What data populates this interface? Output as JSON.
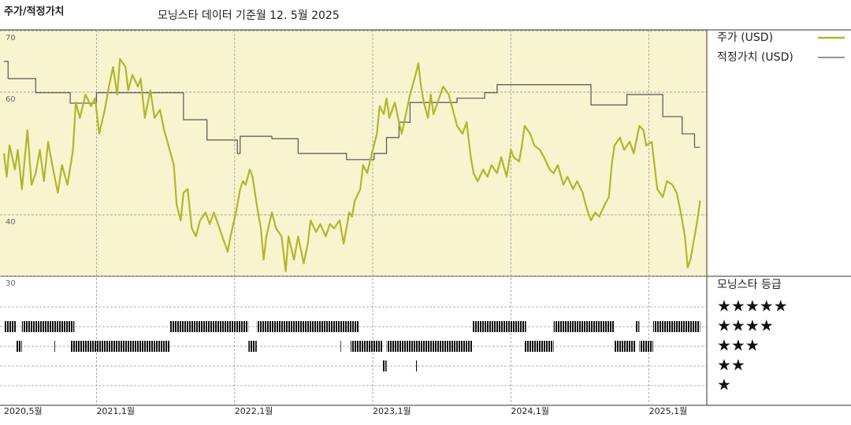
{
  "chart_data": {
    "type": "line",
    "title": "주가/적정가치",
    "subtitle": "모닝스타 데이터 기준월 12. 5월 2025",
    "xlim": [
      2020.33,
      2025.41
    ],
    "xticks": [
      {
        "value": 2020.33,
        "label": "2020,5월"
      },
      {
        "value": 2021.0,
        "label": "2021,1월"
      },
      {
        "value": 2022.0,
        "label": "2022,1월"
      },
      {
        "value": 2023.0,
        "label": "2023,1월"
      },
      {
        "value": 2024.0,
        "label": "2024,1월"
      },
      {
        "value": 2025.0,
        "label": "2025,1월"
      }
    ],
    "ylim": [
      30,
      70
    ],
    "yticks": [
      30,
      40,
      60,
      70
    ],
    "grid": true,
    "series": [
      {
        "name": "주가 (USD)",
        "color": "#b3b52a",
        "step": false,
        "x": [
          2020.33,
          2020.35,
          2020.37,
          2020.41,
          2020.43,
          2020.46,
          2020.5,
          2020.53,
          2020.56,
          2020.59,
          2020.62,
          2020.65,
          2020.68,
          2020.72,
          2020.75,
          2020.79,
          2020.83,
          2020.85,
          2020.88,
          2020.92,
          2020.96,
          2020.99,
          2021.02,
          2021.06,
          2021.09,
          2021.12,
          2021.15,
          2021.17,
          2021.21,
          2021.23,
          2021.26,
          2021.3,
          2021.32,
          2021.35,
          2021.39,
          2021.42,
          2021.46,
          2021.49,
          2021.53,
          2021.56,
          2021.58,
          2021.61,
          2021.63,
          2021.66,
          2021.69,
          2021.72,
          2021.75,
          2021.79,
          2021.82,
          2021.85,
          2021.88,
          2021.91,
          2021.95,
          2021.97,
          2022.01,
          2022.04,
          2022.06,
          2022.08,
          2022.11,
          2022.13,
          2022.16,
          2022.19,
          2022.21,
          2022.23,
          2022.27,
          2022.3,
          2022.34,
          2022.37,
          2022.39,
          2022.43,
          2022.46,
          2022.5,
          2022.53,
          2022.55,
          2022.59,
          2022.62,
          2022.66,
          2022.69,
          2022.72,
          2022.76,
          2022.79,
          2022.83,
          2022.85,
          2022.87,
          2022.91,
          2022.93,
          2022.96,
          2023.0,
          2023.03,
          2023.05,
          2023.08,
          2023.1,
          2023.12,
          2023.16,
          2023.19,
          2023.21,
          2023.24,
          2023.27,
          2023.31,
          2023.33,
          2023.35,
          2023.37,
          2023.4,
          2023.42,
          2023.44,
          2023.48,
          2023.51,
          2023.55,
          2023.58,
          2023.61,
          2023.65,
          2023.68,
          2023.71,
          2023.73,
          2023.76,
          2023.8,
          2023.83,
          2023.86,
          2023.9,
          2023.93,
          2023.97,
          2024.0,
          2024.02,
          2024.06,
          2024.08,
          2024.1,
          2024.14,
          2024.17,
          2024.21,
          2024.24,
          2024.28,
          2024.31,
          2024.34,
          2024.38,
          2024.41,
          2024.45,
          2024.48,
          2024.52,
          2024.55,
          2024.58,
          2024.61,
          2024.64,
          2024.68,
          2024.71,
          2024.73,
          2024.75,
          2024.79,
          2024.82,
          2024.86,
          2024.89,
          2024.93,
          2024.96,
          2024.98,
          2025.02,
          2025.04,
          2025.06,
          2025.1,
          2025.13,
          2025.17,
          2025.2,
          2025.23,
          2025.26,
          2025.28,
          2025.3,
          2025.33,
          2025.35,
          2025.37
        ],
        "values": [
          50.0,
          46.2,
          51.3,
          47.4,
          50.6,
          44.2,
          53.8,
          44.9,
          46.8,
          50.6,
          45.5,
          51.9,
          48.1,
          43.6,
          48.1,
          44.9,
          50.6,
          58.3,
          55.8,
          59.6,
          57.7,
          59.0,
          53.2,
          57.1,
          60.9,
          64.1,
          59.6,
          65.4,
          64.1,
          60.3,
          62.8,
          60.9,
          62.2,
          55.8,
          60.3,
          55.8,
          57.1,
          53.8,
          50.6,
          48.1,
          41.7,
          39.1,
          43.6,
          44.2,
          37.8,
          36.5,
          39.1,
          40.4,
          38.5,
          40.4,
          38.5,
          36.5,
          34.0,
          36.5,
          40.4,
          44.2,
          45.5,
          44.9,
          47.4,
          46.2,
          41.7,
          37.8,
          32.7,
          36.5,
          40.4,
          37.8,
          36.5,
          30.8,
          36.5,
          32.7,
          36.5,
          32.1,
          35.3,
          39.1,
          37.2,
          38.5,
          36.5,
          38.5,
          37.8,
          39.1,
          35.3,
          40.4,
          39.7,
          42.3,
          44.2,
          48.1,
          46.8,
          50.6,
          53.2,
          57.7,
          56.4,
          59.0,
          55.8,
          58.3,
          55.1,
          53.2,
          56.4,
          59.6,
          62.8,
          64.7,
          60.9,
          58.3,
          55.8,
          59.6,
          56.4,
          59.0,
          60.9,
          59.6,
          57.1,
          54.5,
          53.2,
          55.1,
          49.4,
          46.8,
          45.5,
          47.4,
          46.2,
          48.1,
          46.8,
          49.4,
          46.2,
          50.6,
          49.4,
          48.7,
          51.3,
          54.5,
          53.2,
          51.3,
          50.6,
          49.4,
          47.4,
          46.8,
          48.1,
          44.9,
          46.2,
          44.2,
          45.5,
          43.6,
          41.0,
          39.1,
          40.4,
          39.7,
          41.7,
          42.9,
          48.1,
          51.3,
          52.6,
          50.6,
          51.9,
          50.0,
          54.5,
          53.8,
          51.3,
          51.9,
          48.1,
          44.2,
          42.9,
          45.5,
          44.9,
          43.6,
          40.4,
          36.5,
          31.4,
          32.7,
          36.5,
          39.1,
          42.3
        ]
      },
      {
        "name": "적정가치 (USD)",
        "color": "#555555",
        "step": true,
        "x": [
          2020.33,
          2020.36,
          2020.56,
          2020.81,
          2021.0,
          2021.63,
          2021.8,
          2022.02,
          2022.04,
          2022.27,
          2022.46,
          2022.81,
          2023.01,
          2023.1,
          2023.19,
          2023.27,
          2023.61,
          2023.81,
          2023.9,
          2024.58,
          2024.84,
          2025.1,
          2025.24,
          2025.33,
          2025.37
        ],
        "values": [
          65.0,
          62.2,
          59.9,
          58.2,
          59.9,
          55.5,
          52.2,
          50.0,
          52.8,
          52.4,
          50.0,
          49.0,
          50.0,
          52.6,
          55.1,
          58.3,
          59.0,
          59.9,
          61.2,
          57.9,
          59.6,
          56.0,
          53.2,
          51.0,
          51.0
        ]
      }
    ],
    "rating_title": "모닝스타 등급",
    "rating_legend": [
      "★★★★★",
      "★★★★",
      "★★★",
      "★★",
      "★"
    ],
    "ratings": [
      {
        "start": 2020.33,
        "end": 2020.42,
        "stars": 4
      },
      {
        "start": 2020.42,
        "end": 2020.46,
        "stars": 3
      },
      {
        "start": 2020.46,
        "end": 2020.84,
        "stars": 4
      },
      {
        "start": 2020.69,
        "end": 2020.7,
        "stars": 3
      },
      {
        "start": 2020.81,
        "end": 2021.53,
        "stars": 3
      },
      {
        "start": 2021.53,
        "end": 2022.1,
        "stars": 4
      },
      {
        "start": 2022.1,
        "end": 2022.16,
        "stars": 3
      },
      {
        "start": 2022.16,
        "end": 2022.9,
        "stars": 4
      },
      {
        "start": 2022.76,
        "end": 2022.77,
        "stars": 3
      },
      {
        "start": 2022.84,
        "end": 2023.07,
        "stars": 3
      },
      {
        "start": 2023.07,
        "end": 2023.1,
        "stars": 2
      },
      {
        "start": 2023.1,
        "end": 2023.72,
        "stars": 3
      },
      {
        "start": 2023.31,
        "end": 2023.32,
        "stars": 2
      },
      {
        "start": 2023.72,
        "end": 2024.11,
        "stars": 4
      },
      {
        "start": 2024.1,
        "end": 2024.31,
        "stars": 3
      },
      {
        "start": 2024.31,
        "end": 2024.75,
        "stars": 4
      },
      {
        "start": 2024.75,
        "end": 2024.9,
        "stars": 3
      },
      {
        "start": 2024.9,
        "end": 2024.93,
        "stars": 4
      },
      {
        "start": 2024.93,
        "end": 2025.03,
        "stars": 3
      },
      {
        "start": 2025.03,
        "end": 2025.37,
        "stars": 4
      }
    ]
  }
}
